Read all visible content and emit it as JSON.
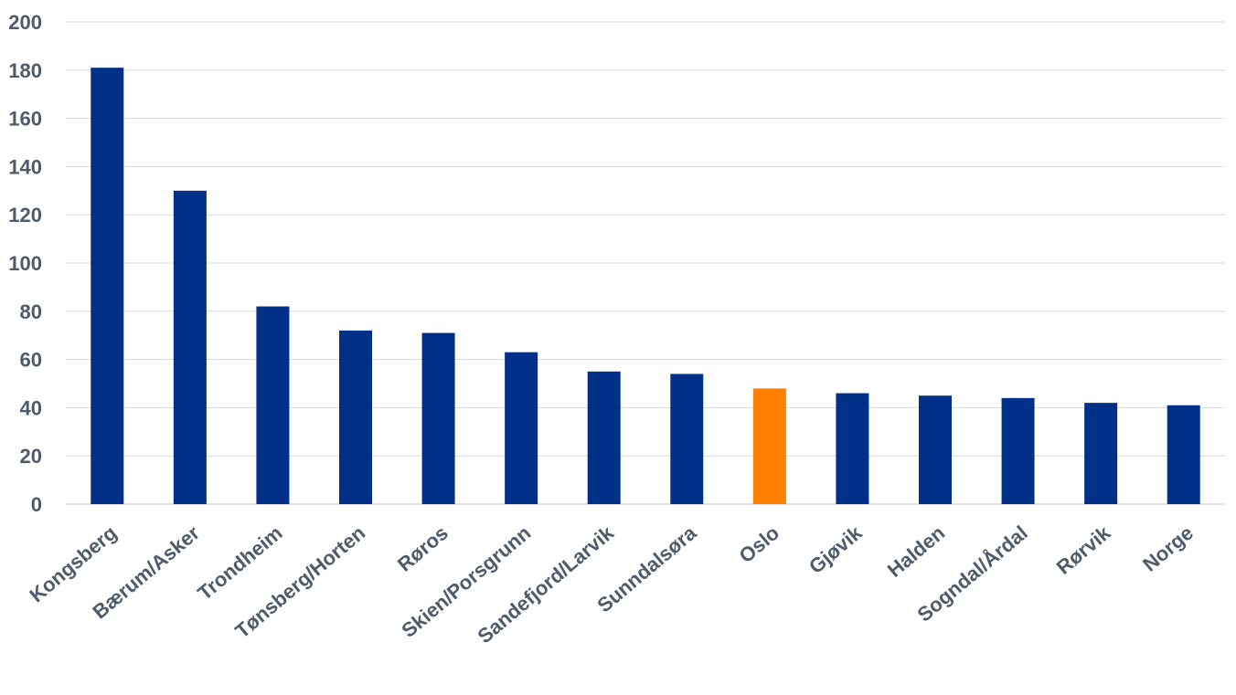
{
  "chart_data": {
    "type": "bar",
    "title": "",
    "xlabel": "",
    "ylabel": "",
    "ylim": [
      0,
      200
    ],
    "yticks": [
      0,
      20,
      40,
      60,
      80,
      100,
      120,
      140,
      160,
      180,
      200
    ],
    "grid": true,
    "categories": [
      "Kongsberg",
      "Bærum/Asker",
      "Trondheim",
      "Tønsberg/Horten",
      "Røros",
      "Skien/Porsgrunn",
      "Sandefjord/Larvik",
      "Sunndalsøra",
      "Oslo",
      "Gjøvik",
      "Halden",
      "Sogndal/Årdal",
      "Rørvik",
      "Norge"
    ],
    "values": [
      181,
      130,
      82,
      72,
      71,
      63,
      55,
      54,
      48,
      46,
      45,
      44,
      42,
      41
    ],
    "colors": {
      "default": "#003087",
      "highlight": "#ff7f00",
      "highlight_category": "Oslo"
    }
  }
}
